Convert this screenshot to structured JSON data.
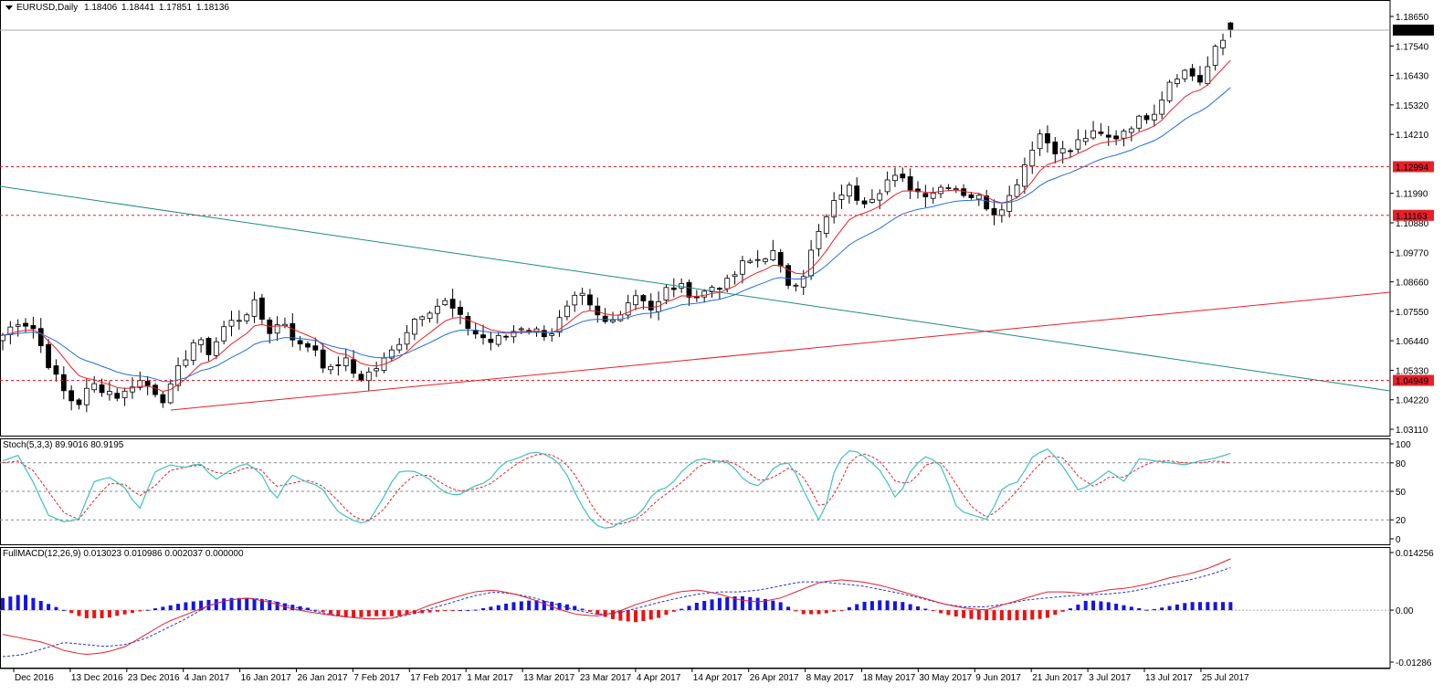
{
  "header": {
    "symbol": "EURUSD,Daily",
    "open": "1.18406",
    "high": "1.18441",
    "low": "1.17851",
    "close": "1.18136"
  },
  "stoch_header": {
    "title": "Stoch(5,3,3)",
    "main": "89.9016",
    "signal": "80.9195"
  },
  "macd_header": {
    "title": "FullMACD(12,26,9)",
    "values": "0.013023 0.010986 0.002037 0.000000"
  },
  "colors": {
    "bull": "#ffffff",
    "bear": "#000000",
    "ema_fast": "#e8202a",
    "ema_slow": "#1f6fe0",
    "trend_down": "#1e8c82",
    "trend_up": "#e8202a",
    "level_line": "#e8202a",
    "stoch_main": "#3fc0c0",
    "stoch_signal": "#e8202a",
    "macd_pos": "#1414e6",
    "macd_neg": "#ee1111",
    "macd_line": "#e8202a",
    "macd_signal": "#2232dd"
  },
  "chart_data": [
    {
      "type": "candlestick",
      "title": "EURUSD,Daily",
      "ylim": [
        1.0311,
        1.1865
      ],
      "price_ticks": [
        "1.18650",
        "1.17540",
        "1.16430",
        "1.15320",
        "1.14210",
        "1.11990",
        "1.10880",
        "1.09770",
        "1.08660",
        "1.07550",
        "1.06440",
        "1.05330",
        "1.04220",
        "1.03110"
      ],
      "x_ticks": [
        "Dec 2016",
        "13 Dec 2016",
        "23 Dec 2016",
        "4 Jan 2017",
        "16 Jan 2017",
        "26 Jan 2017",
        "7 Feb 2017",
        "17 Feb 2017",
        "1 Mar 2017",
        "13 Mar 2017",
        "23 Mar 2017",
        "4 Apr 2017",
        "14 Apr 2017",
        "26 Apr 2017",
        "8 May 2017",
        "18 May 2017",
        "30 May 2017",
        "9 Jun 2017",
        "21 Jun 2017",
        "3 Jul 2017",
        "13 Jul 2017",
        "25 Jul 2017"
      ],
      "current_price": "1.18136",
      "levels": [
        {
          "price": 1.12994,
          "label": "1.12994"
        },
        {
          "price": 1.11163,
          "label": "1.11163"
        },
        {
          "price": 1.04949,
          "label": "1.04949"
        }
      ],
      "anchors": [
        1.0665,
        1.072,
        1.07,
        1.057,
        1.046,
        1.04,
        1.048,
        1.046,
        1.043,
        1.05,
        1.047,
        1.042,
        1.055,
        1.065,
        1.06,
        1.07,
        1.073,
        1.078,
        1.068,
        1.072,
        1.062,
        1.063,
        1.052,
        1.058,
        1.05,
        1.053,
        1.058,
        1.066,
        1.074,
        1.077,
        1.079,
        1.072,
        1.067,
        1.064,
        1.066,
        1.07,
        1.068,
        1.067,
        1.075,
        1.082,
        1.074,
        1.07,
        1.078,
        1.083,
        1.075,
        1.085,
        1.084,
        1.081,
        1.085,
        1.086,
        1.093,
        1.095,
        1.098,
        1.086,
        1.088,
        1.103,
        1.114,
        1.123,
        1.117,
        1.12,
        1.126,
        1.124,
        1.12,
        1.121,
        1.124,
        1.12,
        1.118,
        1.113,
        1.118,
        1.13,
        1.143,
        1.137,
        1.135,
        1.141,
        1.142,
        1.14,
        1.145,
        1.148,
        1.152,
        1.164,
        1.166,
        1.162,
        1.174,
        1.181
      ],
      "indicators": [
        "EMA fast (red)",
        "EMA slow (blue)"
      ]
    },
    {
      "type": "line",
      "title": "Stoch(5,3,3)",
      "ylim": [
        0,
        100
      ],
      "y_ticks": [
        "100",
        "80",
        "50",
        "20",
        "0"
      ],
      "levels": [
        80,
        50,
        20
      ],
      "series": [
        {
          "name": "main",
          "values": [
            82,
            88,
            60,
            25,
            18,
            20,
            60,
            65,
            55,
            30,
            70,
            78,
            75,
            80,
            62,
            72,
            80,
            70,
            40,
            68,
            60,
            55,
            30,
            20,
            15,
            40,
            70,
            72,
            65,
            50,
            45,
            55,
            60,
            80,
            85,
            92,
            88,
            75,
            40,
            15,
            10,
            20,
            25,
            50,
            55,
            75,
            85,
            82,
            80,
            60,
            55,
            78,
            80,
            45,
            15,
            80,
            95,
            85,
            70,
            40,
            75,
            88,
            75,
            30,
            25,
            20,
            55,
            60,
            88,
            95,
            75,
            50,
            60,
            72,
            60,
            85,
            82,
            80,
            78,
            82,
            85,
            90
          ]
        },
        {
          "name": "signal",
          "values": [
            80,
            82,
            72,
            50,
            28,
            20,
            40,
            58,
            58,
            45,
            55,
            72,
            75,
            78,
            70,
            68,
            75,
            74,
            55,
            58,
            62,
            57,
            42,
            25,
            18,
            28,
            50,
            66,
            68,
            58,
            50,
            52,
            56,
            68,
            80,
            88,
            90,
            82,
            62,
            30,
            15,
            16,
            22,
            38,
            50,
            62,
            78,
            82,
            82,
            72,
            60,
            66,
            76,
            62,
            30,
            50,
            85,
            90,
            80,
            58,
            60,
            80,
            80,
            55,
            32,
            22,
            35,
            52,
            72,
            88,
            85,
            65,
            55,
            65,
            65,
            75,
            82,
            82,
            80,
            80,
            82,
            80
          ]
        }
      ]
    },
    {
      "type": "bar+line",
      "title": "FullMACD(12,26,9)",
      "ylim": [
        -0.01286,
        0.014256
      ],
      "y_ticks": [
        "0.014256",
        "0.00",
        "-0.01286"
      ],
      "histogram_anchors": [
        0.003,
        0.004,
        0.002,
        0,
        -0.002,
        -0.002,
        -0.001,
        0,
        0.001,
        0.002,
        0.0025,
        0.003,
        0.003,
        0.0025,
        0.0015,
        0.0005,
        -0.001,
        -0.002,
        -0.0015,
        -0.0015,
        -0.001,
        -0.0005,
        0,
        0,
        0.001,
        0.002,
        0.0025,
        0.002,
        0.001,
        -0.001,
        -0.0025,
        -0.003,
        -0.002,
        0,
        0.002,
        0.003,
        0.0035,
        0.003,
        0.002,
        -0.001,
        -0.001,
        0,
        0.002,
        0.0025,
        0.002,
        0.0005,
        -0.001,
        -0.002,
        -0.0025,
        -0.0025,
        -0.0025,
        -0.002,
        0,
        0.0025,
        0.002,
        0.001,
        0,
        0.001,
        0.002,
        0.002,
        0.002
      ],
      "series": [
        {
          "name": "macd",
          "anchors": [
            -0.006,
            -0.007,
            -0.008,
            -0.01,
            -0.011,
            -0.0105,
            -0.009,
            -0.006,
            -0.003,
            -0.001,
            0.001,
            0.0025,
            0.003,
            0.002,
            0.0005,
            -0.0005,
            -0.0012,
            -0.0018,
            -0.0022,
            -0.002,
            -0.0005,
            0.0015,
            0.003,
            0.0045,
            0.005,
            0.004,
            0.0025,
            0.0005,
            -0.001,
            -0.0015,
            -0.0005,
            0.0015,
            0.003,
            0.0045,
            0.005,
            0.004,
            0.0025,
            0.002,
            0.003,
            0.005,
            0.007,
            0.0075,
            0.007,
            0.006,
            0.0045,
            0.003,
            0.0015,
            0.0005,
            0,
            0.0015,
            0.003,
            0.0045,
            0.0045,
            0.004,
            0.005,
            0.0055,
            0.0065,
            0.008,
            0.009,
            0.0105,
            0.0127
          ]
        },
        {
          "name": "signal",
          "anchors": [
            -0.0115,
            -0.011,
            -0.0095,
            -0.008,
            -0.0085,
            -0.009,
            -0.0085,
            -0.007,
            -0.0045,
            -0.002,
            0.001,
            0.0025,
            0.003,
            0.0025,
            0.001,
            0,
            -0.001,
            -0.0018,
            -0.0022,
            -0.002,
            -0.001,
            0.0005,
            0.002,
            0.0035,
            0.0045,
            0.004,
            0.003,
            0.0015,
            0,
            -0.001,
            -0.0008,
            0.0005,
            0.0018,
            0.003,
            0.004,
            0.0045,
            0.0045,
            0.005,
            0.006,
            0.007,
            0.007,
            0.0065,
            0.006,
            0.005,
            0.004,
            0.0028,
            0.0015,
            0.0008,
            0.0008,
            0.0015,
            0.0025,
            0.003,
            0.0035,
            0.0038,
            0.004,
            0.0045,
            0.0055,
            0.0065,
            0.0075,
            0.0088,
            0.0105
          ]
        }
      ]
    }
  ]
}
